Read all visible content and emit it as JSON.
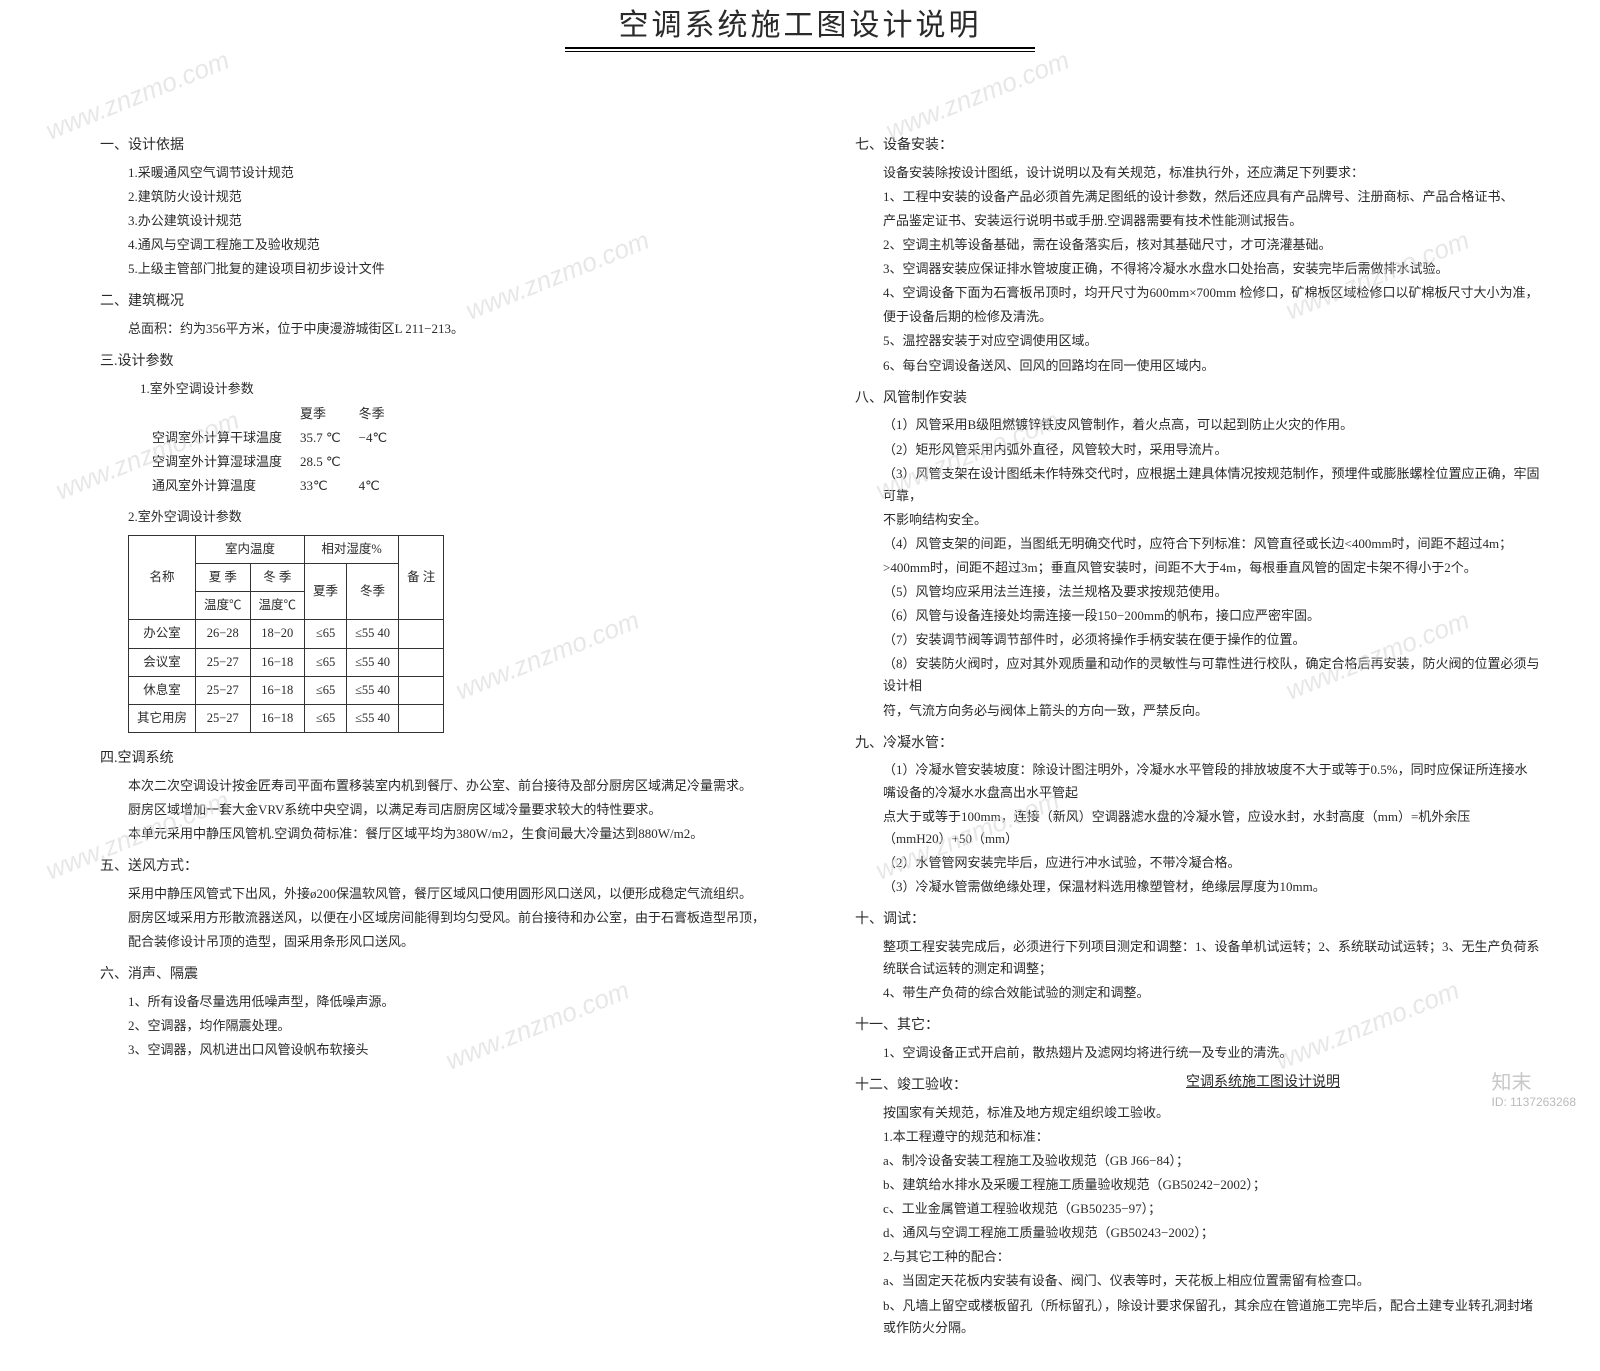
{
  "title": "空调系统施工图设计说明",
  "left": {
    "s1": {
      "h": "一、设计依据",
      "items": [
        "1.采暖通风空气调节设计规范",
        "2.建筑防火设计规范",
        "3.办公建筑设计规范",
        "4.通风与空调工程施工及验收规范",
        "5.上级主管部门批复的建设项目初步设计文件"
      ]
    },
    "s2": {
      "h": "二、建筑概况",
      "body": "总面积：约为356平方米，位于中庚漫游城街区L 211−213。"
    },
    "s3": {
      "h": "三.设计参数",
      "sub1": "1.室外空调设计参数",
      "outdoor": {
        "head": [
          "",
          "夏季",
          "冬季"
        ],
        "rows": [
          [
            "空调室外计算干球温度",
            "35.7 ℃",
            "−4℃"
          ],
          [
            "空调室外计算湿球温度",
            "28.5 ℃",
            ""
          ],
          [
            "通风室外计算温度",
            "33℃",
            "4℃"
          ]
        ]
      },
      "sub2": "2.室外空调设计参数",
      "indoor": {
        "h1": [
          "名称",
          "室内温度",
          "相对湿度%",
          "备  注"
        ],
        "h2": [
          "夏 季",
          "冬 季",
          "",
          ""
        ],
        "h3": [
          "温度℃",
          "温度℃",
          "夏季",
          "冬季"
        ],
        "rows": [
          [
            "办公室",
            "26−28",
            "18−20",
            "≤65",
            "≤55  40",
            ""
          ],
          [
            "会议室",
            "25−27",
            "16−18",
            "≤65",
            "≤55  40",
            ""
          ],
          [
            "休息室",
            "25−27",
            "16−18",
            "≤65",
            "≤55  40",
            ""
          ],
          [
            "其它用房",
            "25−27",
            "16−18",
            "≤65",
            "≤55  40",
            ""
          ]
        ]
      }
    },
    "s4": {
      "h": "四.空调系统",
      "p": [
        "本次二次空调设计按金匠寿司平面布置移装室内机到餐厅、办公室、前台接待及部分厨房区域满足冷量需求。",
        "厨房区域增加一套大金VRV系统中央空调，以满足寿司店厨房区域冷量要求较大的特性要求。",
        "本单元采用中静压风管机.空调负荷标准：餐厅区域平均为380W/m2，生食间最大冷量达到880W/m2。"
      ]
    },
    "s5": {
      "h": "五、送风方式：",
      "p": [
        "采用中静压风管式下出风，外接ø200保温软风管，餐厅区域风口使用圆形风口送风，以便形成稳定气流组织。",
        "厨房区域采用方形散流器送风，以便在小区域房间能得到均匀受风。前台接待和办公室，由于石膏板造型吊顶，",
        "配合装修设计吊顶的造型，固采用条形风口送风。"
      ]
    },
    "s6": {
      "h": "六、消声、隔震",
      "p": [
        "1、所有设备尽量选用低噪声型，降低噪声源。",
        "2、空调器，均作隔震处理。",
        "3、空调器，风机进出口风管设帆布软接头"
      ]
    }
  },
  "right": {
    "s7": {
      "h": "七、设备安装：",
      "lead": "设备安装除按设计图纸，设计说明以及有关规范，标准执行外，还应满足下列要求：",
      "p": [
        "1、工程中安装的设备产品必须首先满足图纸的设计参数，然后还应具有产品牌号、注册商标、产品合格证书、",
        "    产品鉴定证书、安装运行说明书或手册.空调器需要有技术性能测试报告。",
        "2、空调主机等设备基础，需在设备落实后，核对其基础尺寸，才可浇灌基础。",
        "3、空调器安装应保证排水管坡度正确，不得将冷凝水水盘水口处抬高，安装完毕后需做排水试验。",
        "4、空调设备下面为石膏板吊顶时，均开尺寸为600mm×700mm   检修口，矿棉板区域检修口以矿棉板尺寸大小为准，",
        "    便于设备后期的检修及清洗。",
        "5、温控器安装于对应空调使用区域。",
        "6、每台空调设备送风、回风的回路均在同一使用区域内。"
      ]
    },
    "s8": {
      "h": "八、风管制作安装",
      "p": [
        "（1）风管采用B级阻燃镀锌铁皮风管制作，着火点高，可以起到防止火灾的作用。",
        "（2）矩形风管采用内弧外直径，风管较大时，采用导流片。",
        "（3）风管支架在设计图纸未作特殊交代时，应根据土建具体情况按规范制作，预埋件或膨胀螺栓位置应正确，牢固可靠，",
        "     不影响结构安全。",
        "（4）风管支架的间距，当图纸无明确交代时，应符合下列标准：风管直径或长边<400mm时，间距不超过4m；",
        "     >400mm时，间距不超过3m；垂直风管安装时，间距不大于4m，每根垂直风管的固定卡架不得小于2个。",
        "（5）风管均应采用法兰连接，法兰规格及要求按规范使用。",
        "（6）风管与设备连接处均需连接一段150−200mm的帆布，接口应严密牢固。",
        "（7）安装调节阀等调节部件时，必须将操作手柄安装在便于操作的位置。",
        "（8）安装防火阀时，应对其外观质量和动作的灵敏性与可靠性进行校队，确定合格后再安装，防火阀的位置必须与设计相",
        "     符，气流方向务必与阀体上箭头的方向一致，严禁反向。"
      ]
    },
    "s9": {
      "h": "九、冷凝水管：",
      "p": [
        "（1）冷凝水管安装坡度：除设计图注明外，冷凝水水平管段的排放坡度不大于或等于0.5%，同时应保证所连接水嘴设备的冷凝水水盘高出水平管起",
        "     点大于或等于100mm，连接（新风）空调器滤水盘的冷凝水管，应设水封，水封高度（mm）=机外余压（mmH20）+50（mm）",
        "（2）水管管网安装完毕后，应进行冲水试验，不带冷凝合格。",
        "（3）冷凝水管需做绝缘处理，保温材料选用橡塑管材，绝缘层厚度为10mm。"
      ]
    },
    "s10": {
      "h": "十、调试：",
      "p": [
        "整项工程安装完成后，必须进行下列项目测定和调整：1、设备单机试运转；2、系统联动试运转；3、无生产负荷系统联合试运转的测定和调整；",
        "4、带生产负荷的综合效能试验的测定和调整。"
      ]
    },
    "s11": {
      "h": "十一、其它：",
      "p": [
        "1、空调设备正式开启前，散热翅片及滤网均将进行统一及专业的清洗。"
      ]
    },
    "s12": {
      "h": "十二、竣工验收：",
      "lead": "按国家有关规范，标准及地方规定组织竣工验收。",
      "p": [
        "1.本工程遵守的规范和标准：",
        "a、制冷设备安装工程施工及验收规范（GB J66−84）；",
        "b、建筑给水排水及采暖工程施工质量验收规范（GB50242−2002）；",
        "c、工业金属管道工程验收规范（GB50235−97）；",
        "d、通风与空调工程施工质量验收规范（GB50243−2002）；",
        "2.与其它工种的配合：",
        "a、当固定天花板内安装有设备、阀门、仪表等时，天花板上相应位置需留有检查口。",
        "b、凡墙上留空或楼板留孔（所标留孔），除设计要求保留孔，其余应在管道施工完毕后，配合土建专业转孔洞封堵或作防火分隔。"
      ]
    }
  },
  "footer": "空调系统施工图设计说明",
  "brand": "知末",
  "brand_id": "ID: 1137263268",
  "wm": "www.znzmo.com"
}
